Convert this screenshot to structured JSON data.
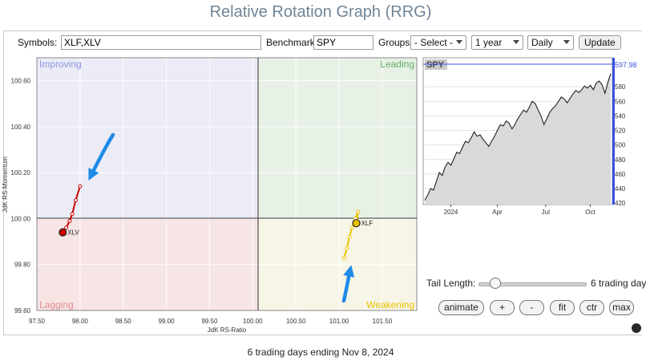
{
  "title": "Relative Rotation Graph (RRG)",
  "toolbar": {
    "symbols_label": "Symbols:",
    "symbols_value": "XLF,XLV",
    "benchmark_label": "Benchmark:",
    "benchmark_value": "SPY",
    "groups_label": "Groups:",
    "groups_value": "- Select -",
    "period_value": "1 year",
    "frequency_value": "Daily",
    "update_label": "Update"
  },
  "rrg": {
    "xlabel": "JdK RS-Ratio",
    "ylabel": "JdK RS-Momentum",
    "quadrants": {
      "improving": "Improving",
      "leading": "Leading",
      "lagging": "Lagging",
      "weakening": "Weakening"
    },
    "x_ticks": [
      "97.50",
      "98.00",
      "98.50",
      "99.00",
      "99.50",
      "100.00",
      "100.50",
      "101.00",
      "101.50"
    ],
    "y_ticks": [
      "100.60",
      "100.40",
      "100.20",
      "100.00",
      "99.80",
      "99.60"
    ]
  },
  "chart_data": [
    {
      "type": "scatter",
      "title": "",
      "xlabel": "JdK RS-Ratio",
      "ylabel": "JdK RS-Momentum",
      "xlim": [
        97.5,
        101.9
      ],
      "ylim": [
        99.6,
        100.7
      ],
      "series": [
        {
          "name": "XLV",
          "color": "#cc0000",
          "points": [
            [
              98.0,
              100.14
            ],
            [
              97.95,
              100.08
            ],
            [
              97.91,
              100.02
            ],
            [
              97.88,
              99.99
            ],
            [
              97.84,
              99.96
            ],
            [
              97.8,
              99.94
            ]
          ]
        },
        {
          "name": "XLF",
          "color": "#e8c400",
          "points": [
            [
              101.06,
              99.83
            ],
            [
              101.09,
              99.87
            ],
            [
              101.12,
              99.92
            ],
            [
              101.15,
              99.96
            ],
            [
              101.19,
              100.0
            ],
            [
              101.22,
              100.03
            ],
            [
              101.2,
              99.98
            ]
          ]
        }
      ]
    },
    {
      "type": "area",
      "title": "SPY",
      "x_tick_labels": [
        "2024",
        "Apr",
        "Jul",
        "Oct"
      ],
      "y_tick_labels": [
        "420",
        "440",
        "460",
        "480",
        "500",
        "520",
        "540",
        "560",
        "580"
      ],
      "ylim": [
        418,
        600
      ],
      "last_value_label": "597.98",
      "values": [
        424,
        431,
        440,
        438,
        450,
        462,
        458,
        470,
        476,
        472,
        481,
        490,
        488,
        497,
        505,
        503,
        510,
        518,
        512,
        514,
        508,
        503,
        498,
        505,
        512,
        520,
        528,
        526,
        533,
        530,
        522,
        528,
        536,
        542,
        548,
        545,
        552,
        560,
        557,
        548,
        540,
        528,
        536,
        545,
        550,
        554,
        560,
        566,
        563,
        558,
        564,
        570,
        575,
        572,
        576,
        581,
        578,
        582,
        576,
        585,
        588,
        583,
        571,
        586,
        598
      ]
    }
  ],
  "controls": {
    "tail_length_label": "Tail Length:",
    "tail_length_value": "6 trading day",
    "tail_length_fraction": 0.15,
    "buttons": {
      "animate": "animate",
      "plus": "+",
      "minus": "-",
      "fit": "fit",
      "ctr": "ctr",
      "max": "max"
    }
  },
  "footer": "6 trading days ending Nov 8, 2024",
  "colors": {
    "title": "#6f8598",
    "improving": "#ececf7",
    "leading": "#e8f1e6",
    "lagging": "#f7e4e4",
    "weakening": "#f7f5e6",
    "annotation_arrow": "#1f8be8"
  }
}
